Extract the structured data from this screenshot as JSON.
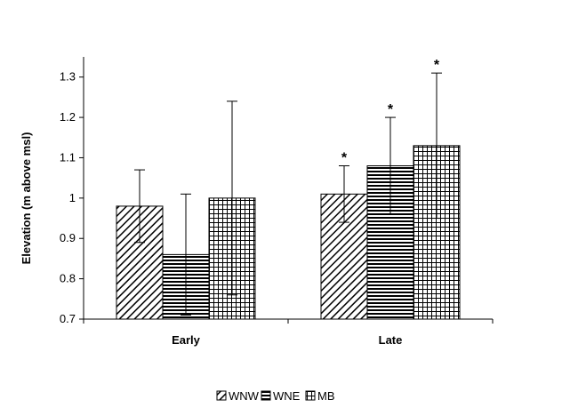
{
  "chart_data": {
    "type": "bar",
    "title": "",
    "xlabel": "",
    "ylabel": "Elevation (m above msl)",
    "ylim": [
      0.7,
      1.35
    ],
    "yticks": [
      "0.7",
      "0.8",
      "0.9",
      "1",
      "1.1",
      "1.2",
      "1.3"
    ],
    "categories": [
      "Early",
      "Late"
    ],
    "grid": false,
    "legend_position": "bottom",
    "series": [
      {
        "name": "WNW",
        "pattern": "diagonal-hatch",
        "values": [
          0.98,
          1.01
        ],
        "error_upper": [
          1.07,
          1.08
        ],
        "error_lower": [
          0.89,
          0.94
        ],
        "annotations": [
          "",
          "*"
        ]
      },
      {
        "name": "WNE",
        "pattern": "horizontal-lines",
        "values": [
          0.86,
          1.08
        ],
        "error_upper": [
          1.01,
          1.2
        ],
        "error_lower": [
          0.71,
          0.96
        ],
        "annotations": [
          "",
          "*"
        ]
      },
      {
        "name": "MB",
        "pattern": "grid",
        "values": [
          1.0,
          1.13
        ],
        "error_upper": [
          1.24,
          1.31
        ],
        "error_lower": [
          0.76,
          0.95
        ],
        "annotations": [
          "",
          "*"
        ]
      }
    ],
    "colors": {
      "bar_fill": "#ffffff",
      "pattern": "#000000",
      "axis": "#000000"
    }
  }
}
